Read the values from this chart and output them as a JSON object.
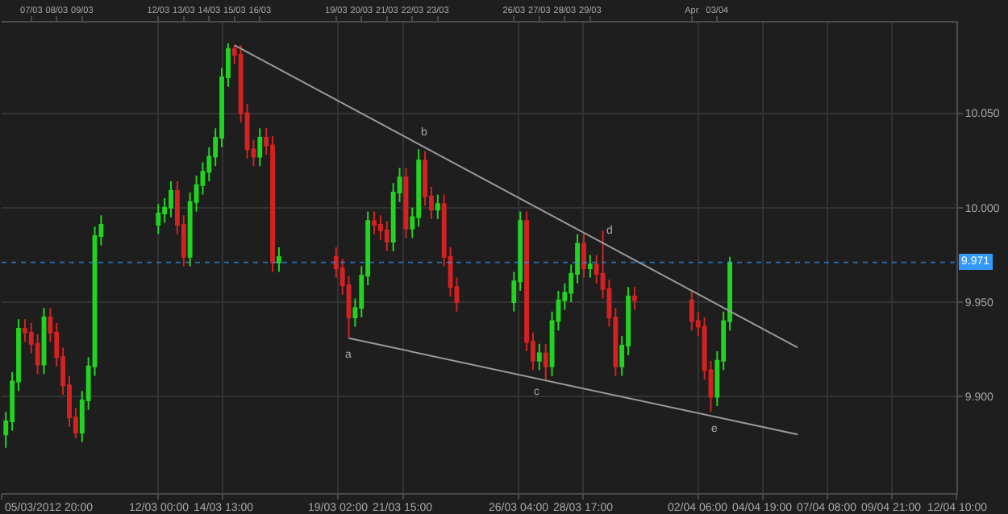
{
  "chart_data": {
    "type": "candlestick",
    "x": [
      "2012-03-06T00:00",
      "2012-03-06T06:00",
      "2012-03-06T12:00",
      "2012-03-06T18:00",
      "2012-03-07T00:00",
      "2012-03-07T06:00",
      "2012-03-07T12:00",
      "2012-03-07T18:00",
      "2012-03-08T00:00",
      "2012-03-08T06:00",
      "2012-03-08T12:00",
      "2012-03-08T18:00",
      "2012-03-09T00:00",
      "2012-03-09T06:00",
      "2012-03-09T12:00",
      "2012-03-09T18:00",
      "2012-03-12T00:00",
      "2012-03-12T06:00",
      "2012-03-12T12:00",
      "2012-03-12T18:00",
      "2012-03-13T00:00",
      "2012-03-13T06:00",
      "2012-03-13T12:00",
      "2012-03-13T18:00",
      "2012-03-14T00:00",
      "2012-03-14T06:00",
      "2012-03-14T12:00",
      "2012-03-14T18:00",
      "2012-03-15T00:00",
      "2012-03-15T06:00",
      "2012-03-15T12:00",
      "2012-03-15T18:00",
      "2012-03-16T00:00",
      "2012-03-16T06:00",
      "2012-03-16T12:00",
      "2012-03-16T18:00",
      "2012-03-19T00:00",
      "2012-03-19T06:00",
      "2012-03-19T12:00",
      "2012-03-19T18:00",
      "2012-03-20T00:00",
      "2012-03-20T06:00",
      "2012-03-20T12:00",
      "2012-03-20T18:00",
      "2012-03-21T00:00",
      "2012-03-21T06:00",
      "2012-03-21T12:00",
      "2012-03-21T18:00",
      "2012-03-22T00:00",
      "2012-03-22T06:00",
      "2012-03-22T12:00",
      "2012-03-22T18:00",
      "2012-03-23T00:00",
      "2012-03-23T06:00",
      "2012-03-23T12:00",
      "2012-03-23T18:00",
      "2012-03-26T00:00",
      "2012-03-26T06:00",
      "2012-03-26T12:00",
      "2012-03-26T18:00",
      "2012-03-27T00:00",
      "2012-03-27T06:00",
      "2012-03-27T12:00",
      "2012-03-27T18:00",
      "2012-03-28T00:00",
      "2012-03-28T06:00",
      "2012-03-28T12:00",
      "2012-03-28T18:00",
      "2012-03-29T00:00",
      "2012-03-29T06:00",
      "2012-03-29T12:00",
      "2012-03-29T18:00",
      "2012-03-30T00:00",
      "2012-03-30T06:00",
      "2012-03-30T12:00",
      "2012-03-30T18:00",
      "2012-04-02T00:00",
      "2012-04-02T06:00",
      "2012-04-02T12:00",
      "2012-04-02T18:00",
      "2012-04-03T00:00",
      "2012-04-03T06:00",
      "2012-04-03T12:00"
    ],
    "ohlc": [
      [
        9.88,
        9.892,
        9.873,
        9.887
      ],
      [
        9.887,
        9.913,
        9.882,
        9.908
      ],
      [
        9.908,
        9.941,
        9.903,
        9.936
      ],
      [
        9.936,
        9.941,
        9.929,
        9.934
      ],
      [
        9.934,
        9.939,
        9.923,
        9.928
      ],
      [
        9.928,
        9.933,
        9.912,
        9.917
      ],
      [
        9.917,
        9.947,
        9.912,
        9.942
      ],
      [
        9.942,
        9.947,
        9.929,
        9.934
      ],
      [
        9.934,
        9.939,
        9.916,
        9.921
      ],
      [
        9.921,
        9.926,
        9.901,
        9.906
      ],
      [
        9.906,
        9.911,
        9.884,
        9.889
      ],
      [
        9.889,
        9.894,
        9.878,
        9.881
      ],
      [
        9.881,
        9.903,
        9.876,
        9.898
      ],
      [
        9.898,
        9.921,
        9.893,
        9.916
      ],
      [
        9.916,
        9.99,
        9.911,
        9.985
      ],
      [
        9.985,
        9.996,
        9.98,
        9.991
      ],
      [
        9.991,
        10.002,
        9.986,
        9.997
      ],
      [
        9.997,
        10.005,
        9.992,
        10.0
      ],
      [
        10.0,
        10.014,
        9.995,
        10.009
      ],
      [
        10.009,
        10.014,
        9.986,
        9.991
      ],
      [
        9.991,
        9.996,
        9.969,
        9.974
      ],
      [
        9.974,
        10.008,
        9.969,
        10.003
      ],
      [
        10.003,
        10.017,
        9.998,
        10.012
      ],
      [
        10.012,
        10.024,
        10.007,
        10.019
      ],
      [
        10.019,
        10.032,
        10.014,
        10.027
      ],
      [
        10.027,
        10.042,
        10.022,
        10.037
      ],
      [
        10.037,
        10.074,
        10.032,
        10.069
      ],
      [
        10.069,
        10.087,
        10.064,
        10.084
      ],
      [
        10.084,
        10.086,
        10.076,
        10.081
      ],
      [
        10.081,
        10.086,
        10.045,
        10.05
      ],
      [
        10.05,
        10.055,
        10.026,
        10.031
      ],
      [
        10.031,
        10.036,
        10.022,
        10.027
      ],
      [
        10.027,
        10.042,
        10.022,
        10.037
      ],
      [
        10.037,
        10.042,
        10.028,
        10.033
      ],
      [
        10.033,
        10.038,
        9.966,
        9.971
      ],
      [
        9.971,
        9.979,
        9.966,
        9.974
      ],
      [
        9.974,
        9.979,
        9.963,
        9.968
      ],
      [
        9.968,
        9.973,
        9.954,
        9.959
      ],
      [
        9.959,
        9.964,
        9.931,
        9.942
      ],
      [
        9.942,
        9.952,
        9.937,
        9.947
      ],
      [
        9.947,
        9.969,
        9.942,
        9.964
      ],
      [
        9.964,
        9.998,
        9.959,
        9.993
      ],
      [
        9.993,
        9.998,
        9.986,
        9.991
      ],
      [
        9.991,
        9.996,
        9.983,
        9.988
      ],
      [
        9.988,
        9.993,
        9.977,
        9.982
      ],
      [
        9.982,
        10.013,
        9.977,
        10.008
      ],
      [
        10.008,
        10.021,
        10.003,
        10.016
      ],
      [
        10.016,
        10.021,
        9.984,
        9.989
      ],
      [
        9.989,
        10.0,
        9.984,
        9.995
      ],
      [
        9.995,
        10.031,
        9.99,
        10.025
      ],
      [
        10.025,
        10.03,
        10.001,
        10.006
      ],
      [
        10.006,
        10.011,
        9.994,
        9.999
      ],
      [
        9.999,
        10.007,
        9.994,
        10.002
      ],
      [
        10.002,
        10.007,
        9.969,
        9.974
      ],
      [
        9.974,
        9.979,
        9.953,
        9.958
      ],
      [
        9.958,
        9.963,
        9.945,
        9.95
      ],
      [
        9.95,
        9.966,
        9.945,
        9.961
      ],
      [
        9.961,
        9.998,
        9.956,
        9.993
      ],
      [
        9.993,
        9.998,
        9.924,
        9.929
      ],
      [
        9.929,
        9.934,
        9.914,
        9.919
      ],
      [
        9.919,
        9.928,
        9.914,
        9.923
      ],
      [
        9.923,
        9.928,
        9.909,
        9.916
      ],
      [
        9.916,
        9.945,
        9.911,
        9.94
      ],
      [
        9.94,
        9.956,
        9.935,
        9.951
      ],
      [
        9.951,
        9.96,
        9.946,
        9.955
      ],
      [
        9.955,
        9.97,
        9.95,
        9.965
      ],
      [
        9.965,
        9.986,
        9.96,
        9.981
      ],
      [
        9.981,
        9.986,
        9.963,
        9.968
      ],
      [
        9.968,
        9.975,
        9.963,
        9.97
      ],
      [
        9.97,
        9.975,
        9.96,
        9.965
      ],
      [
        9.965,
        9.988,
        9.952,
        9.957
      ],
      [
        9.957,
        9.962,
        9.937,
        9.942
      ],
      [
        9.942,
        9.947,
        9.911,
        9.916
      ],
      [
        9.916,
        9.932,
        9.911,
        9.927
      ],
      [
        9.927,
        9.958,
        9.922,
        9.953
      ],
      [
        9.953,
        9.958,
        9.946,
        9.951
      ],
      [
        9.951,
        9.956,
        9.935,
        9.94
      ],
      [
        9.94,
        9.945,
        9.932,
        9.937
      ],
      [
        9.937,
        9.942,
        9.909,
        9.914
      ],
      [
        9.914,
        9.919,
        9.892,
        9.9
      ],
      [
        9.9,
        9.924,
        9.895,
        9.919
      ],
      [
        9.919,
        9.945,
        9.914,
        9.94
      ],
      [
        9.94,
        9.974,
        9.935,
        9.971
      ]
    ],
    "series": [
      {
        "type": "line",
        "color": "#9a9a9a",
        "x": [
          "2012-03-15T00:00",
          "2012-04-06T04:00"
        ],
        "values": [
          10.086,
          9.926
        ]
      },
      {
        "type": "line",
        "color": "#9a9a9a",
        "x": [
          "2012-03-19T12:00",
          "2012-04-06T04:00"
        ],
        "values": [
          9.931,
          9.88
        ]
      }
    ],
    "annotations": [
      {
        "text": "a",
        "x": "2012-03-19T12:00",
        "y": 9.931
      },
      {
        "text": "b",
        "x": "2012-03-22T11:00",
        "y": 10.032
      },
      {
        "text": "c",
        "x": "2012-03-26T22:00",
        "y": 9.911
      },
      {
        "text": "d",
        "x": "2012-03-29T18:00",
        "y": 9.98
      },
      {
        "text": "e",
        "x": "2012-04-02T22:00",
        "y": 9.892
      }
    ],
    "ref_lines": [
      {
        "axis": "y",
        "value": 9.971,
        "label": "9.971",
        "color": "#3399ff",
        "line_style": "dotted"
      }
    ],
    "xlim": [
      "2012-03-05T20:00",
      "2012-04-12T10:00"
    ],
    "xticks": [
      {
        "value": "2012-03-05T20:00",
        "label": "05/03/2012 20:00"
      },
      {
        "value": "2012-03-12T00:00",
        "label": "12/03 00:00"
      },
      {
        "value": "2012-03-14T13:00",
        "label": "14/03 13:00"
      },
      {
        "value": "2012-03-19T02:00",
        "label": "19/03 02:00"
      },
      {
        "value": "2012-03-21T15:00",
        "label": "21/03 15:00"
      },
      {
        "value": "2012-03-26T04:00",
        "label": "26/03 04:00"
      },
      {
        "value": "2012-03-28T17:00",
        "label": "28/03 17:00"
      },
      {
        "value": "2012-04-02T06:00",
        "label": "02/04 06:00"
      },
      {
        "value": "2012-04-04T19:00",
        "label": "04/04 19:00"
      },
      {
        "value": "2012-04-07T08:00",
        "label": "07/04 08:00"
      },
      {
        "value": "2012-04-09T21:00",
        "label": "09/04 21:00"
      },
      {
        "value": "2012-04-12T10:00",
        "label": "12/04 10:00"
      }
    ],
    "x2lim": [
      "2012-03-05T20:00",
      "2012-04-12T10:00"
    ],
    "x2ticks": [
      {
        "value": "2012-03-07",
        "label": "07/03"
      },
      {
        "value": "2012-03-08",
        "label": "08/03"
      },
      {
        "value": "2012-03-09",
        "label": "09/03"
      },
      {
        "value": "2012-03-12",
        "label": "12/03"
      },
      {
        "value": "2012-03-13",
        "label": "13/03"
      },
      {
        "value": "2012-03-14",
        "label": "14/03"
      },
      {
        "value": "2012-03-15",
        "label": "15/03"
      },
      {
        "value": "2012-03-16",
        "label": "16/03"
      },
      {
        "value": "2012-03-19",
        "label": "19/03"
      },
      {
        "value": "2012-03-20",
        "label": "20/03"
      },
      {
        "value": "2012-03-21",
        "label": "21/03"
      },
      {
        "value": "2012-03-22",
        "label": "22/03"
      },
      {
        "value": "2012-03-23",
        "label": "23/03"
      },
      {
        "value": "2012-03-26",
        "label": "26/03"
      },
      {
        "value": "2012-03-27",
        "label": "27/03"
      },
      {
        "value": "2012-03-28",
        "label": "28/03"
      },
      {
        "value": "2012-03-29",
        "label": "29/03"
      },
      {
        "value": "2012-04-02",
        "label": "Apr"
      },
      {
        "value": "2012-04-03",
        "label": "03/04"
      }
    ],
    "ylim": [
      9.849,
      10.098
    ],
    "yticks": [
      {
        "value": 9.9,
        "label": "9.900"
      },
      {
        "value": 9.95,
        "label": "9.950"
      },
      {
        "value": 10,
        "label": "10.000"
      },
      {
        "value": 10.05,
        "label": "10.050"
      }
    ],
    "grid": true,
    "marker": "none"
  }
}
